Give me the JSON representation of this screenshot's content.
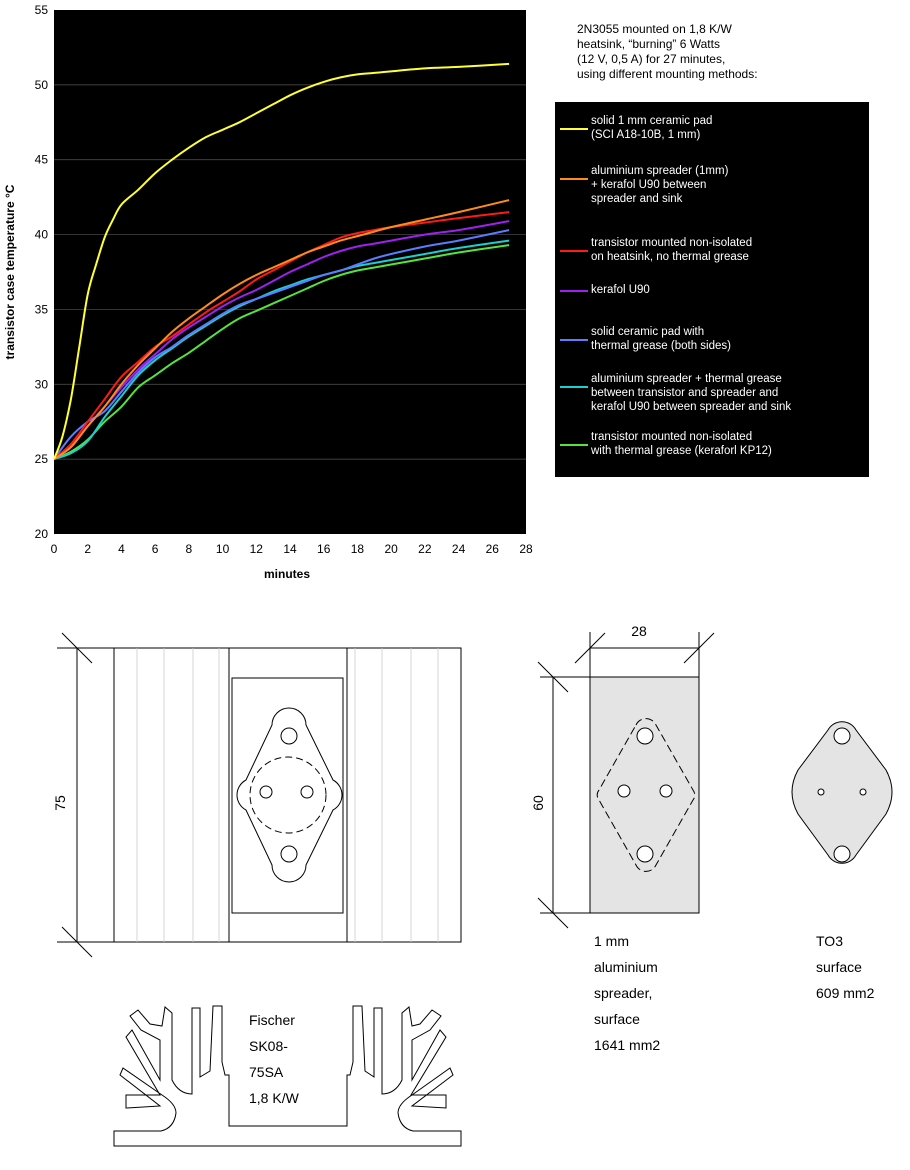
{
  "chart_data": {
    "type": "line",
    "xlabel": "minutes",
    "ylabel": "transistor case temperature °C",
    "xlim": [
      0,
      28
    ],
    "ylim": [
      20,
      55
    ],
    "xticks": [
      "0",
      "2",
      "4",
      "6",
      "8",
      "10",
      "12",
      "14",
      "16",
      "18",
      "20",
      "22",
      "24",
      "26",
      "28"
    ],
    "yticks": [
      "20",
      "25",
      "30",
      "35",
      "40",
      "45",
      "50",
      "55"
    ],
    "grid": "horizontal",
    "background": "#000000",
    "legend_position": "right",
    "series": [
      {
        "name": "solid 1 mm ceramic pad (SCI A18-10B, 1 mm)",
        "color": "#ffff33",
        "x": [
          0,
          0.5,
          1,
          1.5,
          2,
          2.5,
          3,
          3.5,
          4,
          5,
          6,
          7,
          8,
          9,
          10,
          11,
          12,
          13,
          14,
          15,
          16,
          17,
          18,
          19,
          20,
          22,
          24,
          27
        ],
        "y": [
          25,
          26.5,
          29,
          32.5,
          36,
          38,
          39.8,
          41,
          42,
          43,
          44.1,
          45,
          45.8,
          46.5,
          47,
          47.5,
          48.1,
          48.7,
          49.3,
          49.8,
          50.2,
          50.5,
          50.7,
          50.8,
          50.9,
          51.1,
          51.2,
          51.4
        ]
      },
      {
        "name": "aluminium spreader (1mm) + kerafol U90 between spreader and sink",
        "color": "#ff8c1a",
        "x": [
          0,
          1,
          2,
          3,
          4,
          5,
          6,
          7,
          8,
          9,
          10,
          11,
          12,
          13,
          14,
          15,
          16,
          17,
          18,
          19,
          20,
          22,
          24,
          27
        ],
        "y": [
          25,
          25.8,
          27.2,
          28.5,
          30,
          31.3,
          32.4,
          33.5,
          34.4,
          35.2,
          36,
          36.7,
          37.3,
          37.8,
          38.3,
          38.8,
          39.2,
          39.6,
          39.9,
          40.2,
          40.5,
          41,
          41.5,
          42.3
        ]
      },
      {
        "name": "transistor mounted non-isolated on heatsink, no thermal grease",
        "color": "#ff1a1a",
        "x": [
          0,
          1,
          2,
          3,
          4,
          5,
          6,
          7,
          8,
          9,
          10,
          11,
          12,
          13,
          14,
          15,
          16,
          17,
          18,
          19,
          20,
          22,
          24,
          27
        ],
        "y": [
          25,
          26,
          27.5,
          29,
          30.5,
          31.5,
          32.5,
          33.2,
          34,
          34.8,
          35.5,
          36.2,
          37,
          37.6,
          38.2,
          38.8,
          39.3,
          39.8,
          40.1,
          40.3,
          40.5,
          40.8,
          41.1,
          41.5
        ]
      },
      {
        "name": "kerafol U90",
        "color": "#a020f0",
        "x": [
          0,
          1,
          2,
          3,
          4,
          5,
          6,
          7,
          8,
          9,
          10,
          11,
          12,
          13,
          14,
          15,
          16,
          17,
          18,
          19,
          20,
          22,
          24,
          27
        ],
        "y": [
          25,
          25.8,
          27.2,
          28.5,
          29.8,
          31,
          32,
          33,
          33.8,
          34.5,
          35.2,
          35.8,
          36.3,
          36.9,
          37.5,
          38,
          38.5,
          38.9,
          39.2,
          39.4,
          39.6,
          40,
          40.3,
          40.9
        ]
      },
      {
        "name": "solid ceramic pad with thermal grease (both sides)",
        "color": "#5a7dff",
        "x": [
          0,
          1,
          2,
          3,
          4,
          5,
          6,
          7,
          8,
          9,
          10,
          11,
          12,
          13,
          14,
          15,
          16,
          17,
          18,
          19,
          20,
          22,
          24,
          27
        ],
        "y": [
          25,
          26.5,
          27.5,
          28.2,
          29.5,
          30.8,
          31.8,
          32.5,
          33.3,
          34,
          34.7,
          35.3,
          35.7,
          36.1,
          36.5,
          36.9,
          37.3,
          37.6,
          38,
          38.4,
          38.7,
          39.2,
          39.6,
          40.3
        ]
      },
      {
        "name": "aluminium spreader + thermal grease between transistor and spreader and kerafol U90 between spreader and sink",
        "color": "#1ad0d0",
        "x": [
          0,
          1,
          2,
          3,
          4,
          5,
          6,
          7,
          8,
          9,
          10,
          11,
          12,
          13,
          14,
          15,
          16,
          17,
          18,
          19,
          20,
          22,
          24,
          27
        ],
        "y": [
          25,
          25.4,
          26.2,
          27.8,
          29.2,
          30.6,
          31.6,
          32.4,
          33.2,
          33.9,
          34.6,
          35.2,
          35.7,
          36.2,
          36.6,
          37,
          37.3,
          37.6,
          37.9,
          38.1,
          38.3,
          38.7,
          39.1,
          39.6
        ]
      },
      {
        "name": "transistor mounted non-isolated with thermal grease (keraforl KP12)",
        "color": "#55e43c",
        "x": [
          0,
          1,
          2,
          3,
          4,
          5,
          6,
          7,
          8,
          9,
          10,
          11,
          12,
          13,
          14,
          15,
          16,
          17,
          18,
          19,
          20,
          22,
          24,
          27
        ],
        "y": [
          25,
          25.5,
          26.3,
          27.5,
          28.5,
          29.8,
          30.6,
          31.4,
          32.1,
          32.9,
          33.7,
          34.4,
          34.9,
          35.4,
          35.9,
          36.4,
          36.9,
          37.3,
          37.6,
          37.8,
          38,
          38.4,
          38.8,
          39.3
        ]
      }
    ]
  },
  "description_lines": [
    "2N3055 mounted on 1,8 K/W",
    "heatsink, “burning” 6 Watts",
    "(12 V, 0,5 A) for 27 minutes,",
    "using different mounting methods:"
  ],
  "legend_labels": [
    [
      "solid 1 mm ceramic pad",
      "(SCI A18-10B, 1 mm)"
    ],
    [
      "aluminium spreader (1mm)",
      "+ kerafol U90 between",
      "spreader and sink"
    ],
    [
      "transistor mounted non-isolated",
      "on heatsink, no thermal grease"
    ],
    [
      "kerafol U90"
    ],
    [
      "solid ceramic pad with",
      "thermal grease (both sides)"
    ],
    [
      "aluminium spreader + thermal grease",
      "between transistor and spreader and",
      "kerafol U90 between spreader and sink"
    ],
    [
      "transistor mounted non-isolated",
      "with thermal grease (keraforl KP12)"
    ]
  ],
  "drawing": {
    "heatsink_height": "75",
    "spreader_width": "28",
    "spreader_height": "60",
    "heatsink_label": [
      "Fischer",
      "SK08-",
      "75SA",
      "1,8 K/W"
    ],
    "spreader_label": [
      "1 mm",
      "aluminium",
      "spreader,",
      "surface",
      "1641 mm2"
    ],
    "to3_label": [
      "TO3",
      "surface",
      "609 mm2"
    ]
  }
}
